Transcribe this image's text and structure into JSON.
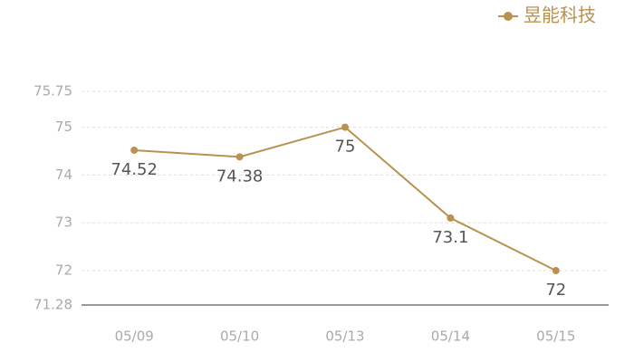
{
  "chart_data": {
    "type": "line",
    "categories": [
      "05/09",
      "05/10",
      "05/13",
      "05/14",
      "05/15"
    ],
    "series": [
      {
        "name": "昱能科技",
        "color": "#b8924e",
        "values": [
          74.52,
          74.38,
          75,
          73.1,
          72
        ]
      }
    ],
    "ylim": [
      71.28,
      75.75
    ],
    "yticks": [
      71.28,
      72,
      73,
      74,
      75,
      75.75
    ],
    "grid": true,
    "legend": "top-right"
  }
}
